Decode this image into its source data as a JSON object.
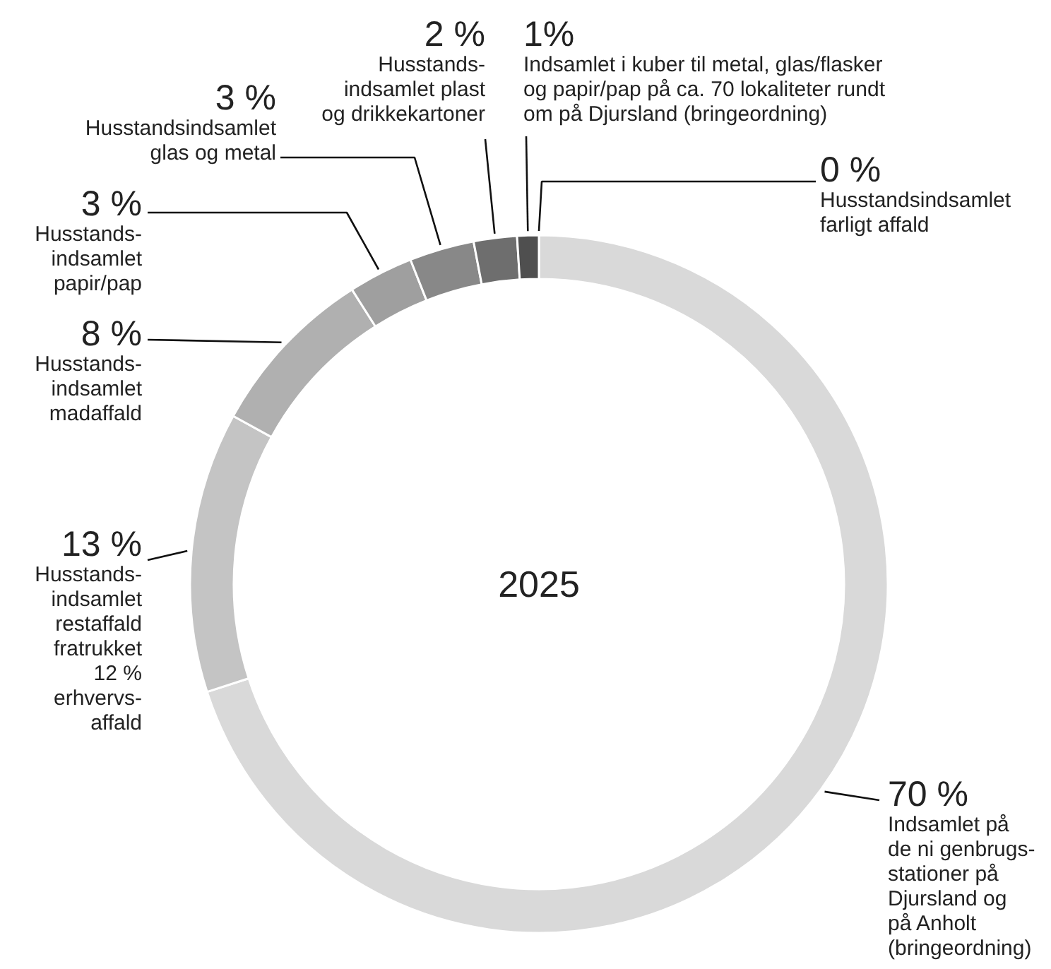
{
  "chart_data": {
    "type": "donut",
    "title": "2025",
    "categories": [
      "Indsamlet på\nde ni genbrugs-\nstationer på\nDjursland og\npå Anholt\n(bringeordning)",
      "Husstands-\nindsamlet\nrestaffald\nfratrukket\n12 %\nerhvervs-\naffald",
      "Husstands-\nindsamlet\nmadaffald",
      "Husstands-\nindsamlet\npapir/pap",
      "Husstandsindsamlet\nglas og metal",
      "Husstands-\nindsamlet plast\nog drikkekartoner",
      "Indsamlet i kuber til metal, glas/flasker\nog papir/pap på ca. 70 lokaliteter rundt\nom på Djursland (bringeordning)",
      "Husstandsindsamlet\nfarligt affald"
    ],
    "values": [
      70,
      13,
      8,
      3,
      3,
      2,
      1,
      0
    ],
    "colors": [
      "#d9d9d9",
      "#c4c4c4",
      "#b0b0b0",
      "#9f9f9f",
      "#888888",
      "#6e6e6e",
      "#4f4f4f",
      "#333333"
    ],
    "value_labels": [
      "70 %",
      "13 %",
      "8 %",
      "3 %",
      "3 %",
      "2 %",
      "1%",
      "0 %"
    ]
  }
}
